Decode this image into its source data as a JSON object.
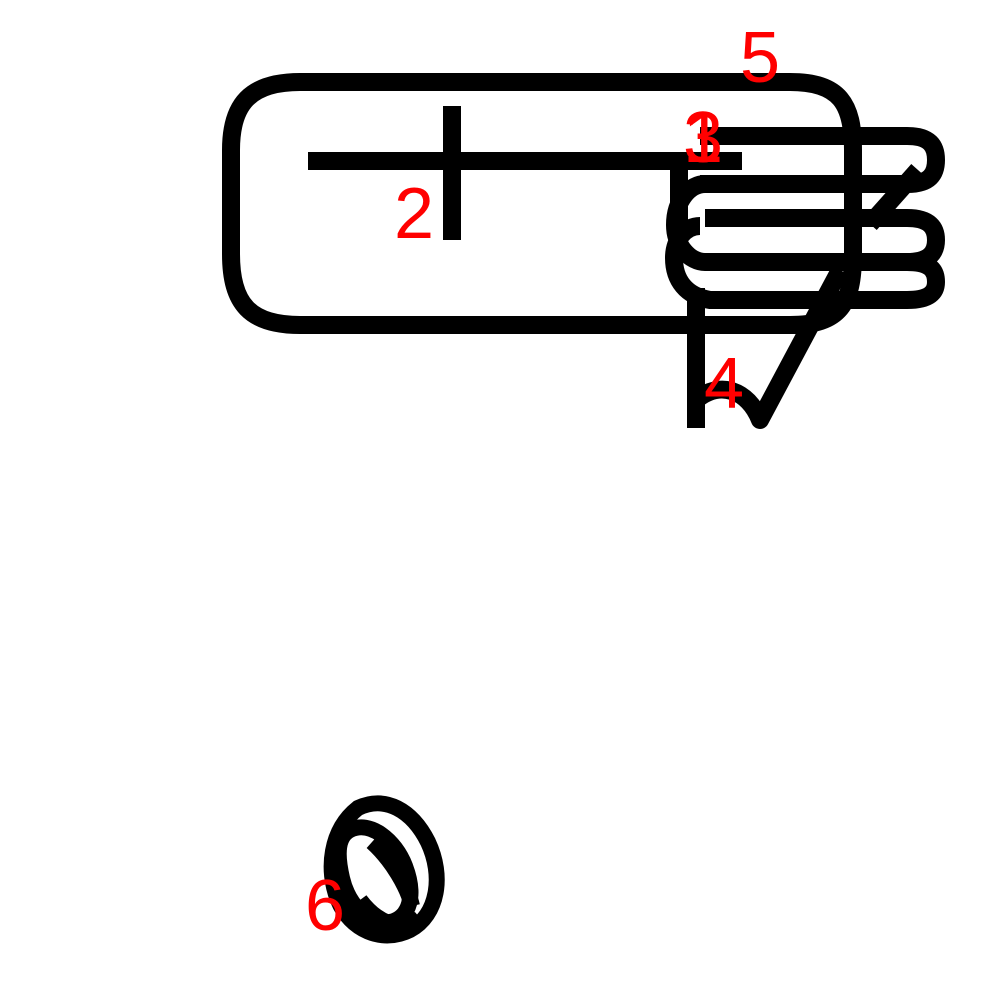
{
  "colors": {
    "stroke": "#000000",
    "label": "#ff0000",
    "background": "#ffffff"
  },
  "labels": {
    "one": "1",
    "two": "2",
    "three": "3",
    "four": "4",
    "five": "5",
    "six": "6"
  }
}
